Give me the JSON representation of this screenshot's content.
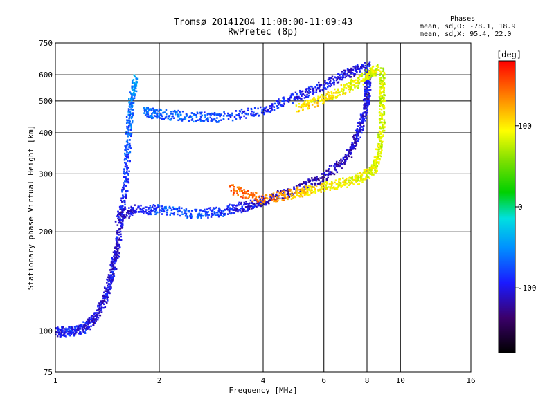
{
  "header": {
    "title_line1": "Tromsø 20141204 11:08:00-11:09:43",
    "title_line2": "RwPretec (8p)"
  },
  "phase_info": {
    "heading": "Phases",
    "line_o": "mean, sd,O: -78.1, 18.9",
    "line_x": "mean, sd,X:  95.4, 22.0"
  },
  "colorbar": {
    "unit": "[deg]",
    "ticks": [
      "100",
      "0",
      "-100"
    ],
    "range": [
      -180,
      180
    ],
    "tick_values": [
      100,
      0,
      -100
    ]
  },
  "chart_data": {
    "type": "scatter",
    "xlabel": "Frequency [MHz]",
    "ylabel": "Stationary phase Virtual Height [km]",
    "x_scale": "log",
    "y_scale": "log",
    "xlim": [
      1,
      16
    ],
    "ylim": [
      75,
      750
    ],
    "x_ticks": [
      "1",
      "2",
      "4",
      "6",
      "8",
      "10",
      "16"
    ],
    "x_tick_values": [
      1,
      2,
      4,
      6,
      8,
      10,
      16
    ],
    "y_ticks": [
      "75",
      "100",
      "200",
      "300",
      "400",
      "500",
      "600",
      "750"
    ],
    "y_tick_values": [
      75,
      100,
      200,
      300,
      400,
      500,
      600,
      750
    ],
    "grid": true,
    "series": [
      {
        "points": [
          [
            1.0,
            100,
            -100
          ],
          [
            1.1,
            100,
            -90
          ],
          [
            1.2,
            102,
            -95
          ],
          [
            1.3,
            110,
            -110
          ],
          [
            1.4,
            130,
            -105
          ],
          [
            1.45,
            150,
            -100
          ],
          [
            1.5,
            175,
            -110
          ],
          [
            1.55,
            230,
            -100
          ],
          [
            1.6,
            300,
            -80
          ],
          [
            1.62,
            400,
            -70
          ],
          [
            1.65,
            500,
            -60
          ],
          [
            1.7,
            590,
            -40
          ]
        ]
      },
      {
        "points": [
          [
            1.5,
            222,
            -110
          ],
          [
            1.7,
            235,
            -100
          ],
          [
            2.0,
            235,
            -75
          ],
          [
            2.5,
            228,
            -70
          ],
          [
            3.0,
            232,
            -85
          ],
          [
            3.5,
            240,
            -100
          ],
          [
            4.0,
            250,
            -110
          ],
          [
            5.0,
            270,
            -115
          ],
          [
            6.0,
            295,
            -115
          ],
          [
            7.0,
            340,
            -110
          ],
          [
            7.5,
            400,
            -105
          ],
          [
            7.9,
            480,
            -100
          ],
          [
            8.0,
            560,
            -100
          ],
          [
            8.0,
            630,
            -95
          ]
        ]
      },
      {
        "points": [
          [
            3.2,
            272,
            150
          ],
          [
            4.0,
            252,
            140
          ],
          [
            5.0,
            265,
            120
          ],
          [
            5.5,
            270,
            100
          ],
          [
            6.5,
            280,
            95
          ],
          [
            7.5,
            290,
            90
          ],
          [
            8.3,
            310,
            85
          ],
          [
            8.6,
            350,
            85
          ],
          [
            8.8,
            420,
            80
          ],
          [
            8.8,
            520,
            80
          ],
          [
            8.8,
            620,
            80
          ]
        ]
      },
      {
        "points": [
          [
            1.8,
            465,
            -70
          ],
          [
            2.0,
            458,
            -65
          ],
          [
            2.5,
            450,
            -70
          ],
          [
            3.0,
            448,
            -80
          ],
          [
            4.0,
            470,
            -90
          ],
          [
            5.0,
            520,
            -95
          ],
          [
            6.0,
            560,
            -100
          ],
          [
            7.0,
            610,
            -105
          ],
          [
            8.0,
            640,
            -100
          ]
        ]
      },
      {
        "points": [
          [
            5.0,
            480,
            110
          ],
          [
            6.0,
            510,
            100
          ],
          [
            7.0,
            550,
            90
          ],
          [
            8.0,
            600,
            85
          ],
          [
            8.5,
            630,
            85
          ]
        ]
      }
    ]
  }
}
